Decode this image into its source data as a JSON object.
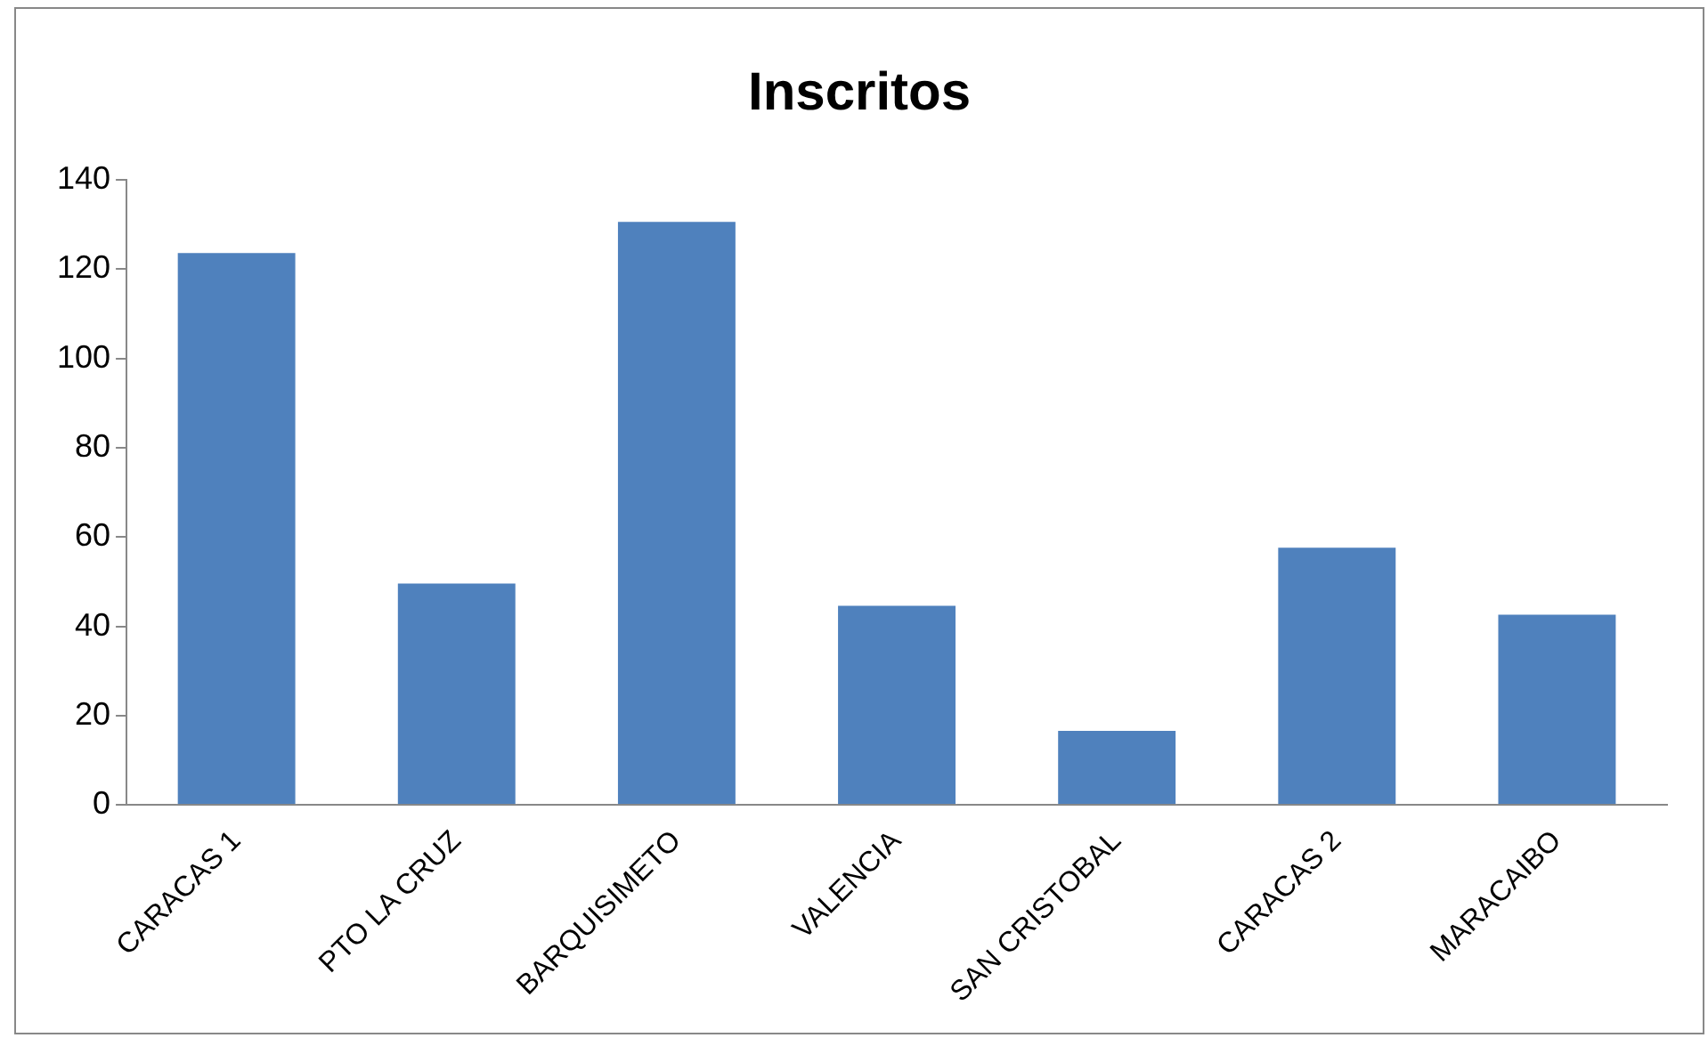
{
  "chart_data": {
    "type": "bar",
    "title": "Inscritos",
    "categories": [
      "CARACAS 1",
      "PTO LA CRUZ",
      "BARQUISIMETO",
      "VALENCIA",
      "SAN CRISTOBAL",
      "CARACAS 2",
      "MARACAIBO"
    ],
    "values": [
      124,
      50,
      131,
      45,
      17,
      58,
      43
    ],
    "color": "#4f81bd",
    "ylim": [
      0,
      140
    ],
    "yticks": [
      0,
      20,
      40,
      60,
      80,
      100,
      120,
      140
    ],
    "grid": false,
    "legend": false
  }
}
